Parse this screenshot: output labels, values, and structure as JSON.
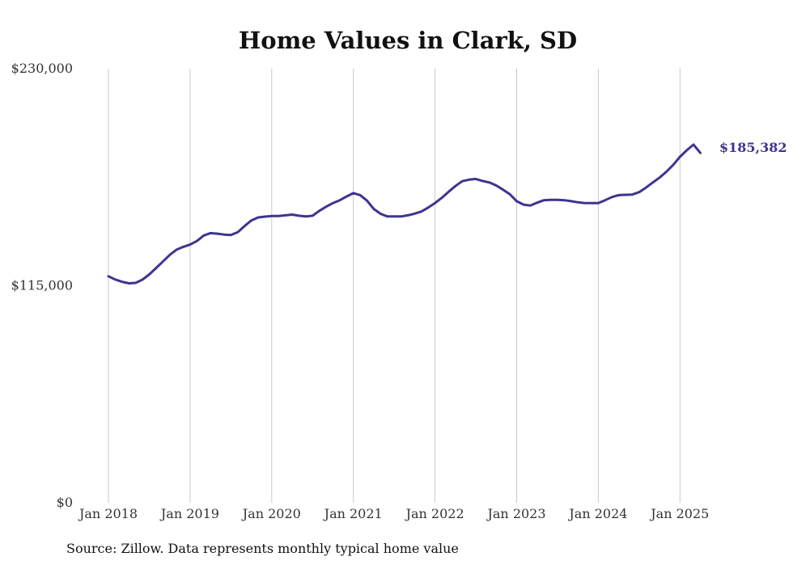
{
  "chart_data": {
    "type": "line",
    "title": "Home Values in Clark, SD",
    "source": "Source: Zillow. Data represents monthly typical home value",
    "ylim": [
      0,
      230000
    ],
    "y_ticks": [
      {
        "value": 0,
        "label": "$0"
      },
      {
        "value": 115000,
        "label": "$115,000"
      },
      {
        "value": 230000,
        "label": "$230,000"
      }
    ],
    "x_ticks": [
      {
        "value": "2018-01",
        "label": "Jan 2018"
      },
      {
        "value": "2019-01",
        "label": "Jan 2019"
      },
      {
        "value": "2020-01",
        "label": "Jan 2020"
      },
      {
        "value": "2021-01",
        "label": "Jan 2021"
      },
      {
        "value": "2022-01",
        "label": "Jan 2022"
      },
      {
        "value": "2023-01",
        "label": "Jan 2023"
      },
      {
        "value": "2024-01",
        "label": "Jan 2024"
      },
      {
        "value": "2025-01",
        "label": "Jan 2025"
      }
    ],
    "grid": "vertical",
    "line_color": "#3d3590",
    "end_label": "$185,382",
    "series": [
      {
        "x": [
          "2018-01",
          "2018-02",
          "2018-03",
          "2018-04",
          "2018-05",
          "2018-06",
          "2018-07",
          "2018-08",
          "2018-09",
          "2018-10",
          "2018-11",
          "2018-12",
          "2019-01",
          "2019-02",
          "2019-03",
          "2019-04",
          "2019-05",
          "2019-06",
          "2019-07",
          "2019-08",
          "2019-09",
          "2019-10",
          "2019-11",
          "2019-12",
          "2020-01",
          "2020-02",
          "2020-03",
          "2020-04",
          "2020-05",
          "2020-06",
          "2020-07",
          "2020-08",
          "2020-09",
          "2020-10",
          "2020-11",
          "2020-12",
          "2021-01",
          "2021-02",
          "2021-03",
          "2021-04",
          "2021-05",
          "2021-06",
          "2021-07",
          "2021-08",
          "2021-09",
          "2021-10",
          "2021-11",
          "2021-12",
          "2022-01",
          "2022-02",
          "2022-03",
          "2022-04",
          "2022-05",
          "2022-06",
          "2022-07",
          "2022-08",
          "2022-09",
          "2022-10",
          "2022-11",
          "2022-12",
          "2023-01",
          "2023-02",
          "2023-03",
          "2023-04",
          "2023-05",
          "2023-06",
          "2023-07",
          "2023-08",
          "2023-09",
          "2023-10",
          "2023-11",
          "2023-12",
          "2024-01",
          "2024-02",
          "2024-03",
          "2024-04",
          "2024-05",
          "2024-06",
          "2024-07",
          "2024-08",
          "2024-09",
          "2024-10",
          "2024-11",
          "2024-12",
          "2025-01",
          "2025-02",
          "2025-03",
          "2025-04"
        ],
        "values": [
          120000,
          118300,
          117100,
          116300,
          116500,
          118200,
          121000,
          124400,
          127800,
          131300,
          134100,
          135600,
          136800,
          138700,
          141600,
          142900,
          142600,
          142100,
          141900,
          143400,
          146600,
          149600,
          151200,
          151600,
          151900,
          151900,
          152300,
          152700,
          152100,
          151700,
          152100,
          154700,
          156900,
          158800,
          160300,
          162300,
          164100,
          163000,
          160100,
          155700,
          153100,
          151700,
          151700,
          151700,
          152300,
          153200,
          154300,
          156400,
          158800,
          161600,
          164800,
          167800,
          170400,
          171200,
          171600,
          170500,
          169700,
          168100,
          165900,
          163500,
          159800,
          158000,
          157500,
          159000,
          160300,
          160500,
          160500,
          160300,
          159800,
          159200,
          158800,
          158800,
          158800,
          160300,
          162000,
          163000,
          163200,
          163300,
          164600,
          167000,
          169700,
          172300,
          175400,
          179000,
          183300,
          186800,
          189800,
          185382
        ]
      }
    ]
  }
}
